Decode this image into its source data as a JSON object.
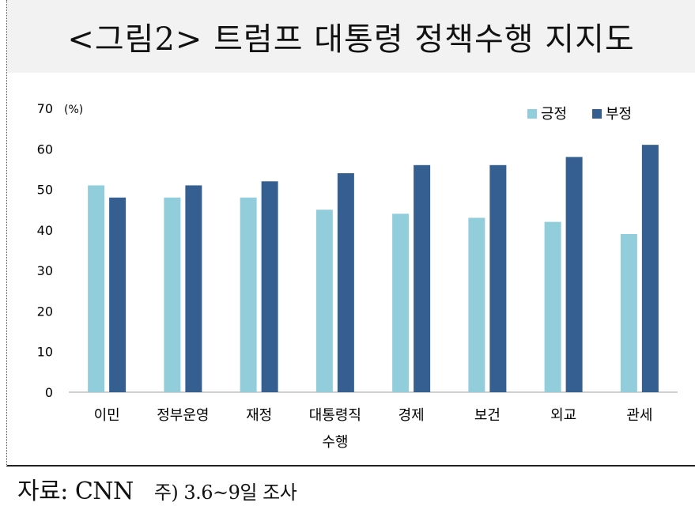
{
  "figure": {
    "title": "<그림2> 트럼프 대통령 정책수행 지지도",
    "source": "자료: CNN",
    "note": "주) 3.6~9일 조사"
  },
  "chart_data": {
    "type": "bar",
    "unit_label": "(%)",
    "categories": [
      "이민",
      "정부운영",
      "재정",
      "대통령직\n수행",
      "경제",
      "보건",
      "외교",
      "관세"
    ],
    "series": [
      {
        "name": "긍정",
        "color": "#92cddc",
        "values": [
          51,
          48,
          48,
          45,
          44,
          43,
          42,
          39
        ]
      },
      {
        "name": "부정",
        "color": "#365f91",
        "values": [
          48,
          51,
          52,
          54,
          56,
          56,
          58,
          61
        ]
      }
    ],
    "ylim": [
      0,
      70
    ],
    "yticks": [
      0,
      10,
      20,
      30,
      40,
      50,
      60,
      70
    ],
    "grid": false,
    "legend_position": "top-right"
  }
}
